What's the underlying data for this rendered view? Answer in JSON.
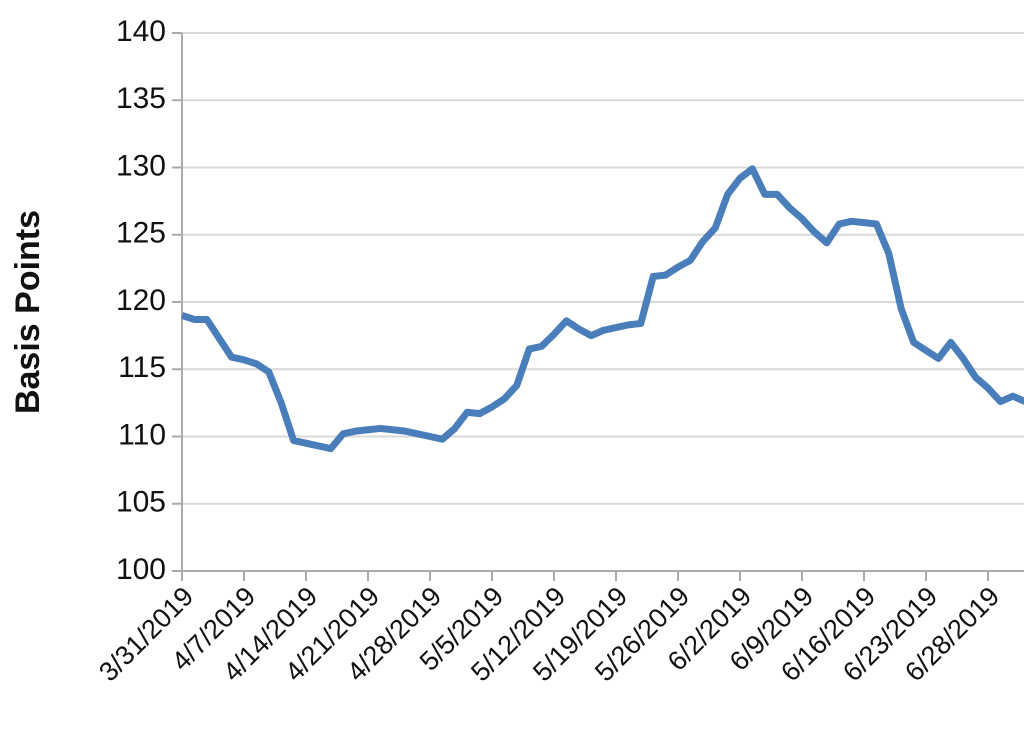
{
  "chart_data": {
    "type": "line",
    "y_label": "Basis Points",
    "categories": [
      "3/31/2019",
      null,
      null,
      null,
      null,
      "4/7/2019",
      null,
      null,
      null,
      null,
      "4/14/2019",
      null,
      null,
      null,
      null,
      "4/21/2019",
      null,
      null,
      null,
      null,
      "4/28/2019",
      null,
      null,
      null,
      null,
      "5/5/2019",
      null,
      null,
      null,
      null,
      "5/12/2019",
      null,
      null,
      null,
      null,
      "5/19/2019",
      null,
      null,
      null,
      null,
      "5/26/2019",
      null,
      null,
      null,
      null,
      "6/2/2019",
      null,
      null,
      null,
      null,
      "6/9/2019",
      null,
      null,
      null,
      null,
      "6/16/2019",
      null,
      null,
      null,
      null,
      "6/23/2019",
      null,
      null,
      null,
      null,
      "6/28/2019",
      null,
      null,
      null
    ],
    "series": [
      {
        "name": "Basis Points",
        "color": "#4a7ebb",
        "values": [
          119.0,
          118.7,
          118.7,
          117.3,
          115.9,
          115.7,
          115.4,
          114.8,
          112.5,
          109.7,
          109.5,
          109.3,
          109.1,
          110.2,
          110.4,
          110.5,
          110.6,
          110.5,
          110.4,
          110.2,
          110.0,
          109.8,
          110.6,
          111.8,
          111.7,
          112.2,
          112.8,
          113.8,
          116.5,
          116.7,
          117.6,
          118.6,
          118.0,
          117.5,
          117.9,
          118.1,
          118.3,
          118.4,
          121.9,
          122.0,
          122.6,
          123.1,
          124.5,
          125.5,
          128.0,
          129.2,
          129.9,
          128.0,
          128.0,
          127.0,
          126.2,
          125.2,
          124.4,
          125.8,
          126.0,
          125.9,
          125.8,
          123.6,
          119.5,
          117.0,
          116.4,
          115.8,
          117.0,
          115.8,
          114.4,
          113.6,
          112.6,
          113.0,
          112.6
        ]
      }
    ],
    "ylim": [
      100,
      140
    ],
    "yticks": [
      100,
      105,
      110,
      115,
      120,
      125,
      130,
      135,
      140
    ],
    "grid": true
  }
}
